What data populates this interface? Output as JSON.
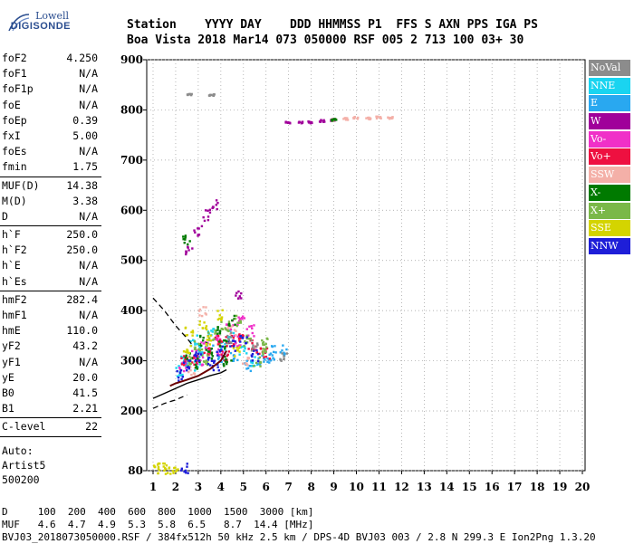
{
  "logo": {
    "line1": "Lowell",
    "line2": "DIGISONDE"
  },
  "header": {
    "line1": "Station    YYYY DAY    DDD HHMMSS P1  FFS S AXN PPS IGA PS",
    "line2": "Boa Vista 2018 Mar14 073 050000 RSF 005 2 713 100 03+ 30"
  },
  "params": {
    "group1": [
      {
        "label": "foF2",
        "value": "4.250"
      },
      {
        "label": "foF1",
        "value": "N/A"
      },
      {
        "label": "foF1p",
        "value": "N/A"
      },
      {
        "label": "foE",
        "value": "N/A"
      },
      {
        "label": "foEp",
        "value": "0.39"
      },
      {
        "label": "fxI",
        "value": "5.00"
      },
      {
        "label": "foEs",
        "value": "N/A"
      },
      {
        "label": "fmin",
        "value": "1.75"
      }
    ],
    "group2": [
      {
        "label": "MUF(D)",
        "value": "14.38"
      },
      {
        "label": "M(D)",
        "value": "3.38"
      },
      {
        "label": "D",
        "value": "N/A"
      }
    ],
    "group3": [
      {
        "label": "h`F",
        "value": "250.0"
      },
      {
        "label": "h`F2",
        "value": "250.0"
      },
      {
        "label": "h`E",
        "value": "N/A"
      },
      {
        "label": "h`Es",
        "value": "N/A"
      }
    ],
    "group4": [
      {
        "label": "hmF2",
        "value": "282.4"
      },
      {
        "label": "hmF1",
        "value": "N/A"
      },
      {
        "label": "hmE",
        "value": "110.0"
      },
      {
        "label": "yF2",
        "value": "43.2"
      },
      {
        "label": "yF1",
        "value": "N/A"
      },
      {
        "label": "yE",
        "value": "20.0"
      },
      {
        "label": "B0",
        "value": "41.5"
      },
      {
        "label": "B1",
        "value": "2.21"
      }
    ],
    "group5": [
      {
        "label": "C-level",
        "value": "22"
      }
    ],
    "auto": [
      "Auto:",
      "Artist5",
      "500200"
    ]
  },
  "legend": [
    {
      "label": "NoVal",
      "color": "#8c8c8c"
    },
    {
      "label": "NNE",
      "color": "#1ad4f0"
    },
    {
      "label": "E",
      "color": "#29a8f0"
    },
    {
      "label": "W",
      "color": "#a0009a"
    },
    {
      "label": "Vo-",
      "color": "#f030c8"
    },
    {
      "label": "Vo+",
      "color": "#ee1040"
    },
    {
      "label": "SSW",
      "color": "#f4b0a8"
    },
    {
      "label": "X-",
      "color": "#007a00"
    },
    {
      "label": "X+",
      "color": "#7ab848"
    },
    {
      "label": "SSE",
      "color": "#d4d400"
    },
    {
      "label": "NNW",
      "color": "#1e1ed8"
    }
  ],
  "footer": {
    "line1": "D     100  200  400  600  800  1000  1500  3000 [km]",
    "line2": "MUF   4.6  4.7  4.9  5.3  5.8  6.5   8.7  14.4 [MHz]",
    "line3": "BVJ03_2018073050000.RSF / 384fx512h 50 kHz 2.5 km / DPS-4D BVJ03 003 / 2.8 N 299.3 E Ion2Png 1.3.20"
  },
  "chart_data": {
    "type": "scatter",
    "xlim": [
      1,
      20
    ],
    "ylim": [
      80,
      900
    ],
    "x_ticks": [
      "1",
      "2",
      "3",
      "4",
      "5",
      "6",
      "7",
      "8",
      "9",
      "10",
      "11",
      "12",
      "13",
      "14",
      "15",
      "16",
      "17",
      "18",
      "19",
      "20"
    ],
    "y_ticks": [
      "80",
      "200",
      "300",
      "400",
      "500",
      "600",
      "700",
      "800",
      "900"
    ],
    "grid": true,
    "series": [
      {
        "name": "NNE",
        "points": [
          [
            2.4,
            300
          ],
          [
            2.8,
            340
          ],
          [
            3.2,
            320
          ],
          [
            3.6,
            360
          ],
          [
            4.1,
            330
          ],
          [
            4.5,
            350
          ],
          [
            5.0,
            320
          ],
          [
            5.5,
            300
          ],
          [
            2.2,
            280
          ],
          [
            3.0,
            290
          ]
        ]
      },
      {
        "name": "E",
        "points": [
          [
            2.5,
            290
          ],
          [
            3.0,
            310
          ],
          [
            3.5,
            330
          ],
          [
            4.0,
            300
          ],
          [
            4.6,
            310
          ],
          [
            5.2,
            290
          ],
          [
            5.8,
            300
          ],
          [
            6.2,
            300
          ],
          [
            6.3,
            320
          ],
          [
            6.8,
            320
          ]
        ]
      },
      {
        "name": "W",
        "points": [
          [
            3.0,
            560
          ],
          [
            3.4,
            590
          ],
          [
            3.8,
            610
          ],
          [
            2.6,
            520
          ],
          [
            4.8,
            430
          ],
          [
            7.0,
            775
          ],
          [
            7.5,
            775
          ],
          [
            8.0,
            775
          ],
          [
            8.5,
            778
          ],
          [
            9.0,
            780
          ]
        ]
      },
      {
        "name": "Vo-",
        "points": [
          [
            2.3,
            290
          ],
          [
            2.8,
            310
          ],
          [
            3.3,
            330
          ],
          [
            3.9,
            350
          ],
          [
            4.4,
            370
          ],
          [
            4.9,
            380
          ],
          [
            5.3,
            360
          ],
          [
            3.1,
            300
          ],
          [
            4.0,
            320
          ],
          [
            4.7,
            340
          ]
        ]
      },
      {
        "name": "Vo+",
        "points": [
          [
            2.4,
            300
          ],
          [
            2.9,
            300
          ],
          [
            3.4,
            320
          ],
          [
            3.9,
            340
          ],
          [
            4.4,
            340
          ],
          [
            4.9,
            350
          ],
          [
            5.4,
            330
          ],
          [
            5.7,
            320
          ],
          [
            6.0,
            315
          ],
          [
            4.2,
            310
          ]
        ]
      },
      {
        "name": "SSW",
        "points": [
          [
            9.0,
            780
          ],
          [
            9.5,
            782
          ],
          [
            10.0,
            784
          ],
          [
            10.5,
            783
          ],
          [
            11.0,
            785
          ],
          [
            11.5,
            784
          ],
          [
            3.2,
            400
          ],
          [
            4.5,
            360
          ],
          [
            5.1,
            300
          ],
          [
            2.7,
            280
          ]
        ]
      },
      {
        "name": "X-",
        "points": [
          [
            2.6,
            310
          ],
          [
            3.2,
            340
          ],
          [
            3.8,
            360
          ],
          [
            4.5,
            380
          ],
          [
            2.9,
            295
          ],
          [
            3.5,
            315
          ],
          [
            4.1,
            335
          ],
          [
            9.0,
            780
          ],
          [
            2.5,
            540
          ],
          [
            4.3,
            300
          ]
        ]
      },
      {
        "name": "X+",
        "points": [
          [
            3.0,
            330
          ],
          [
            3.6,
            350
          ],
          [
            4.2,
            370
          ],
          [
            4.8,
            380
          ],
          [
            5.2,
            340
          ],
          [
            5.6,
            300
          ],
          [
            2.7,
            300
          ],
          [
            3.3,
            300
          ],
          [
            6.0,
            320
          ],
          [
            5.9,
            340
          ]
        ]
      },
      {
        "name": "SSE",
        "points": [
          [
            2.5,
            320
          ],
          [
            3.2,
            370
          ],
          [
            4.0,
            390
          ],
          [
            1.2,
            85
          ],
          [
            1.6,
            84
          ],
          [
            2.0,
            86
          ],
          [
            2.6,
            360
          ],
          [
            3.4,
            340
          ],
          [
            4.7,
            320
          ],
          [
            1.4,
            88
          ]
        ]
      },
      {
        "name": "NNW",
        "points": [
          [
            2.5,
            290
          ],
          [
            3.0,
            310
          ],
          [
            3.5,
            300
          ],
          [
            4.0,
            320
          ],
          [
            4.5,
            330
          ],
          [
            5.0,
            340
          ],
          [
            5.5,
            310
          ],
          [
            2.2,
            270
          ],
          [
            3.8,
            290
          ],
          [
            2.4,
            85
          ]
        ]
      },
      {
        "name": "NoVal",
        "points": [
          [
            2.6,
            830
          ],
          [
            3.6,
            830
          ],
          [
            4.4,
            345
          ],
          [
            5.5,
            330
          ],
          [
            6.8,
            310
          ]
        ]
      }
    ],
    "profile_curve": [
      [
        1.0,
        225
      ],
      [
        1.5,
        235
      ],
      [
        2.0,
        245
      ],
      [
        2.5,
        255
      ],
      [
        3.0,
        262
      ],
      [
        3.5,
        270
      ],
      [
        4.0,
        276
      ],
      [
        4.25,
        282
      ]
    ],
    "trace_curve": [
      [
        1.75,
        250
      ],
      [
        2.0,
        255
      ],
      [
        2.5,
        262
      ],
      [
        3.0,
        270
      ],
      [
        3.5,
        283
      ],
      [
        4.0,
        300
      ],
      [
        4.25,
        320
      ]
    ],
    "dashed_curve": [
      [
        1.0,
        425
      ],
      [
        1.5,
        400
      ],
      [
        2.0,
        370
      ],
      [
        2.5,
        345
      ],
      [
        2.8,
        328
      ]
    ],
    "dashed_curve_low": [
      [
        1.0,
        205
      ],
      [
        1.5,
        215
      ],
      [
        2.0,
        222
      ],
      [
        2.5,
        232
      ]
    ]
  }
}
